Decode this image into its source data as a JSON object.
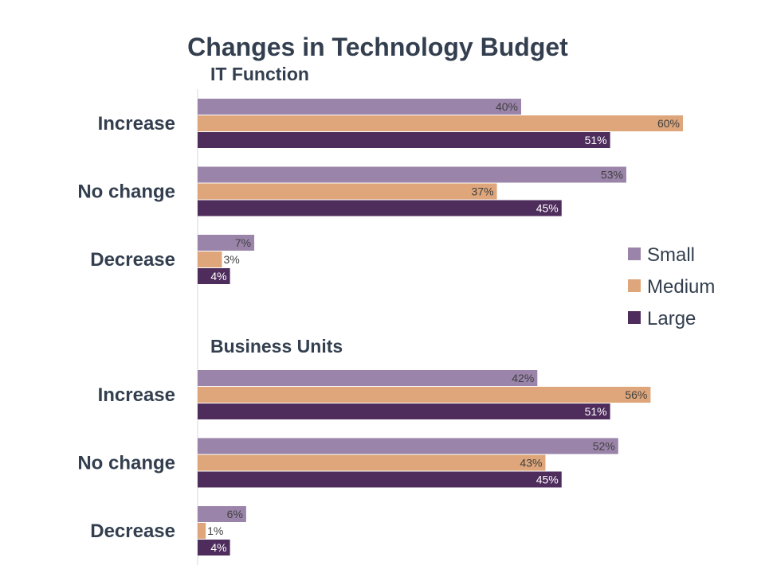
{
  "chart_data": {
    "type": "bar",
    "orientation": "horizontal",
    "title": "Changes in Technology Budget",
    "legend": {
      "placement": "right",
      "entries": [
        {
          "name": "Small",
          "color": "#9b84aa"
        },
        {
          "name": "Medium",
          "color": "#dea67a"
        },
        {
          "name": "Large",
          "color": "#4e2d5c"
        }
      ]
    },
    "unit": "%",
    "xlim": [
      0,
      100
    ],
    "grid": false,
    "panels": [
      {
        "title": "IT Function",
        "categories": [
          "Increase",
          "No change",
          "Decrease"
        ],
        "series": [
          {
            "name": "Small",
            "values": [
              40,
              53,
              7
            ]
          },
          {
            "name": "Medium",
            "values": [
              60,
              37,
              3
            ]
          },
          {
            "name": "Large",
            "values": [
              51,
              45,
              4
            ]
          }
        ]
      },
      {
        "title": "Business Units",
        "categories": [
          "Increase",
          "No change",
          "Decrease"
        ],
        "series": [
          {
            "name": "Small",
            "values": [
              42,
              52,
              6
            ]
          },
          {
            "name": "Medium",
            "values": [
              56,
              43,
              1
            ]
          },
          {
            "name": "Large",
            "values": [
              51,
              45,
              4
            ]
          }
        ]
      }
    ]
  }
}
